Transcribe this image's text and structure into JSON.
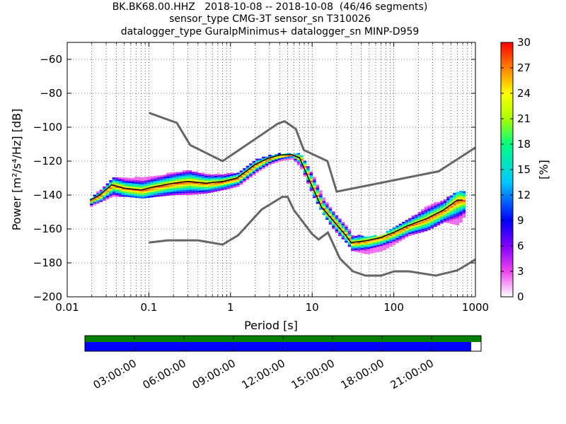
{
  "titles": [
    "BK.BK68.00.HHZ   2018-10-08 -- 2018-10-08  (46/46 segments)",
    "sensor_type CMG-3T sensor_sn T310026",
    "datalogger_type GuralpMinimus+ datalogger_sn MINP-D959"
  ],
  "chart_data": {
    "type": "heatmap",
    "xlabel": "Period [s]",
    "ylabel": "Power [m²/s⁴/Hz] [dB]",
    "xscale": "log",
    "xlim": [
      0.01,
      1000
    ],
    "ylim": [
      -200,
      -50
    ],
    "xticks": [
      {
        "v": 0.01,
        "label": "0.01"
      },
      {
        "v": 0.1,
        "label": "0.1"
      },
      {
        "v": 1,
        "label": "1"
      },
      {
        "v": 10,
        "label": "10"
      },
      {
        "v": 100,
        "label": "100"
      },
      {
        "v": 1000,
        "label": "1000"
      }
    ],
    "yticks": [
      {
        "v": -60,
        "label": "−60"
      },
      {
        "v": -80,
        "label": "−80"
      },
      {
        "v": -100,
        "label": "−100"
      },
      {
        "v": -120,
        "label": "−120"
      },
      {
        "v": -140,
        "label": "−140"
      },
      {
        "v": -160,
        "label": "−160"
      },
      {
        "v": -180,
        "label": "−180"
      },
      {
        "v": -200,
        "label": "−200"
      }
    ],
    "grid": true,
    "noise_model_high": [
      [
        0.1,
        -91.5
      ],
      [
        0.22,
        -97.4
      ],
      [
        0.32,
        -110.5
      ],
      [
        0.8,
        -120
      ],
      [
        3.8,
        -97.9
      ],
      [
        4.6,
        -96.5
      ],
      [
        6.3,
        -101
      ],
      [
        7.9,
        -113.5
      ],
      [
        15.4,
        -120
      ],
      [
        20,
        -138
      ],
      [
        354.8,
        -126
      ],
      [
        1000,
        -112
      ]
    ],
    "noise_model_low": [
      [
        0.1,
        -168
      ],
      [
        0.17,
        -166.7
      ],
      [
        0.4,
        -166.7
      ],
      [
        0.8,
        -169.2
      ],
      [
        1.24,
        -163.7
      ],
      [
        2.4,
        -148.6
      ],
      [
        4.3,
        -141.1
      ],
      [
        5,
        -141.1
      ],
      [
        6,
        -149
      ],
      [
        10,
        -163
      ],
      [
        12,
        -166.2
      ],
      [
        15.6,
        -162.1
      ],
      [
        21.9,
        -177.5
      ],
      [
        31.6,
        -185
      ],
      [
        45,
        -187.5
      ],
      [
        70,
        -187.5
      ],
      [
        101,
        -185
      ],
      [
        154,
        -185
      ],
      [
        328,
        -187.5
      ],
      [
        600,
        -184.4
      ],
      [
        1000,
        -178
      ]
    ],
    "mode_curve": [
      [
        0.019,
        -143
      ],
      [
        0.025,
        -140
      ],
      [
        0.035,
        -134
      ],
      [
        0.05,
        -136
      ],
      [
        0.08,
        -137
      ],
      [
        0.12,
        -135
      ],
      [
        0.2,
        -133
      ],
      [
        0.3,
        -132
      ],
      [
        0.5,
        -133
      ],
      [
        0.8,
        -132
      ],
      [
        1.2,
        -130
      ],
      [
        2,
        -122
      ],
      [
        3,
        -118
      ],
      [
        4,
        -116.5
      ],
      [
        5.5,
        -116
      ],
      [
        7,
        -118
      ],
      [
        10,
        -135
      ],
      [
        13,
        -147
      ],
      [
        18,
        -155
      ],
      [
        25,
        -163
      ],
      [
        30,
        -168
      ],
      [
        45,
        -167
      ],
      [
        70,
        -165
      ],
      [
        100,
        -162
      ],
      [
        150,
        -158
      ],
      [
        250,
        -154
      ],
      [
        400,
        -149
      ],
      [
        600,
        -143
      ],
      [
        700,
        -143
      ]
    ],
    "pdf_bands": [
      {
        "x": 0.019,
        "lo": -146,
        "hi": -141,
        "m": -143
      },
      {
        "x": 0.025,
        "lo": -143,
        "hi": -136,
        "m": -140
      },
      {
        "x": 0.035,
        "lo": -140,
        "hi": -129,
        "m": -134
      },
      {
        "x": 0.05,
        "lo": -140,
        "hi": -129,
        "m": -136
      },
      {
        "x": 0.08,
        "lo": -141,
        "hi": -129,
        "m": -137
      },
      {
        "x": 0.12,
        "lo": -140,
        "hi": -128,
        "m": -135
      },
      {
        "x": 0.2,
        "lo": -139,
        "hi": -126,
        "m": -133
      },
      {
        "x": 0.3,
        "lo": -139,
        "hi": -125,
        "m": -132
      },
      {
        "x": 0.5,
        "lo": -138,
        "hi": -127,
        "m": -133
      },
      {
        "x": 0.8,
        "lo": -136,
        "hi": -127,
        "m": -132
      },
      {
        "x": 1.2,
        "lo": -134,
        "hi": -126,
        "m": -130
      },
      {
        "x": 2,
        "lo": -126,
        "hi": -118,
        "m": -122
      },
      {
        "x": 3,
        "lo": -121,
        "hi": -116,
        "m": -118
      },
      {
        "x": 4,
        "lo": -119,
        "hi": -115,
        "m": -116.5
      },
      {
        "x": 5.5,
        "lo": -118,
        "hi": -115,
        "m": -116
      },
      {
        "x": 7,
        "lo": -123,
        "hi": -115,
        "m": -118
      },
      {
        "x": 10,
        "lo": -140,
        "hi": -128,
        "m": -135
      },
      {
        "x": 13,
        "lo": -150,
        "hi": -140,
        "m": -147
      },
      {
        "x": 18,
        "lo": -160,
        "hi": -150,
        "m": -155
      },
      {
        "x": 25,
        "lo": -167,
        "hi": -157,
        "m": -163
      },
      {
        "x": 30,
        "lo": -172,
        "hi": -163,
        "m": -168
      },
      {
        "x": 45,
        "lo": -174,
        "hi": -164,
        "m": -167
      },
      {
        "x": 70,
        "lo": -172,
        "hi": -163,
        "m": -165
      },
      {
        "x": 100,
        "lo": -168,
        "hi": -158,
        "m": -162
      },
      {
        "x": 150,
        "lo": -163,
        "hi": -153,
        "m": -158
      },
      {
        "x": 250,
        "lo": -160,
        "hi": -146,
        "m": -154
      },
      {
        "x": 400,
        "lo": -155,
        "hi": -142,
        "m": -149
      },
      {
        "x": 600,
        "lo": -157,
        "hi": -137,
        "m": -143
      },
      {
        "x": 700,
        "lo": -152,
        "hi": -137,
        "m": -143
      }
    ],
    "colorbar": {
      "label": "[%]",
      "min": 0,
      "max": 30,
      "ticks": [
        "0",
        "3",
        "6",
        "9",
        "12",
        "15",
        "18",
        "21",
        "24",
        "27",
        "30"
      ]
    },
    "coverage": {
      "data_fraction": 0.975,
      "gaps_fraction": 0.025
    },
    "time_ticks": [
      "03:00:00",
      "06:00:00",
      "09:00:00",
      "12:00:00",
      "15:00:00",
      "18:00:00",
      "21:00:00"
    ],
    "time_tick_fractions": [
      0.125,
      0.25,
      0.375,
      0.5,
      0.625,
      0.75,
      0.875
    ]
  },
  "colors": {
    "noise_model": "#666666",
    "mode": "#000000",
    "coverage_top": "#008000",
    "coverage_bottom": "#0000ff"
  }
}
